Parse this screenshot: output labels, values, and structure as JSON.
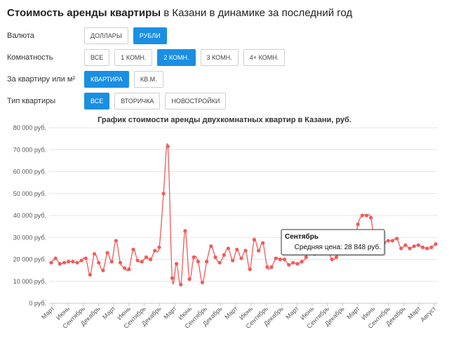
{
  "header": {
    "title_bold": "Стоимость аренды квартиры",
    "title_rest": " в Казани в динамике за последний год"
  },
  "filters": [
    {
      "label": "Валюта",
      "options": [
        "ДОЛЛАРЫ",
        "РУБЛИ"
      ],
      "active": 1
    },
    {
      "label": "Комнатность",
      "options": [
        "ВСЕ",
        "1 КОМН.",
        "2 КОМН.",
        "3 КОМН.",
        "4+ КОМН."
      ],
      "active": 2
    },
    {
      "label": "За квартиру или м²",
      "options": [
        "КВАРТИРА",
        "КВ.М."
      ],
      "active": 0
    },
    {
      "label": "Тип квартиры",
      "options": [
        "ВСЕ",
        "ВТОРИЧКА",
        "НОВОСТРОЙКИ"
      ],
      "active": 0
    }
  ],
  "colors": {
    "accent": "#1a8fe3",
    "series": "#f25a5a",
    "grid": "#e6e6e6"
  },
  "tooltip": {
    "title": "Сентябрь",
    "text": "Средняя цена: 28 848 руб.",
    "index": 60
  },
  "chart_data": {
    "type": "line",
    "title": "График стоимости аренды двухкомнатных квартир в Казани, руб.",
    "ylim": [
      0,
      80000
    ],
    "yticks": [
      0,
      10000,
      20000,
      30000,
      40000,
      50000,
      60000,
      70000,
      80000
    ],
    "ytick_labels": [
      "0 руб.",
      "10 000 руб.",
      "20 000 руб.",
      "30 000 руб.",
      "40 000 руб.",
      "50 000 руб.",
      "60 000 руб.",
      "70 000 руб.",
      "80 000 руб."
    ],
    "xtick_labels": [
      "Март",
      "Июнь",
      "Сентябрь",
      "Декабрь",
      "Март",
      "Июнь",
      "Сентябрь",
      "Декабрь",
      "Март",
      "Июнь",
      "Сентябрь",
      "Декабрь",
      "Март",
      "Июнь",
      "Сентябрь",
      "Декабрь",
      "Март",
      "Июнь",
      "Сентябрь",
      "Декабрь",
      "Март",
      "Июнь",
      "Сентябрь",
      "Декабрь",
      "Март",
      "Август"
    ],
    "grid": true,
    "legend": "none",
    "values": [
      18500,
      20500,
      18000,
      18500,
      19000,
      19000,
      18500,
      19500,
      20500,
      13000,
      22500,
      18500,
      15000,
      23000,
      19000,
      28500,
      18500,
      16000,
      15500,
      24500,
      19500,
      19000,
      21000,
      20000,
      24000,
      25500,
      50000,
      71500,
      11500,
      18000,
      8500,
      33000,
      11000,
      21000,
      19000,
      9500,
      19000,
      26000,
      21000,
      18500,
      22000,
      25000,
      19500,
      24500,
      20500,
      24000,
      15500,
      29000,
      24000,
      27500,
      16500,
      16500,
      20500,
      20000,
      20000,
      17500,
      18500,
      18000,
      19000,
      21000,
      28848,
      22500,
      23000,
      23000,
      24000,
      20000,
      21000,
      24000,
      23000,
      23500,
      24000,
      36000,
      40000,
      40000,
      39000,
      25500,
      26500,
      27500,
      28500,
      28500,
      29500,
      25000,
      26500,
      25000,
      26000,
      26500,
      25500,
      25000,
      25500,
      27000
    ]
  }
}
